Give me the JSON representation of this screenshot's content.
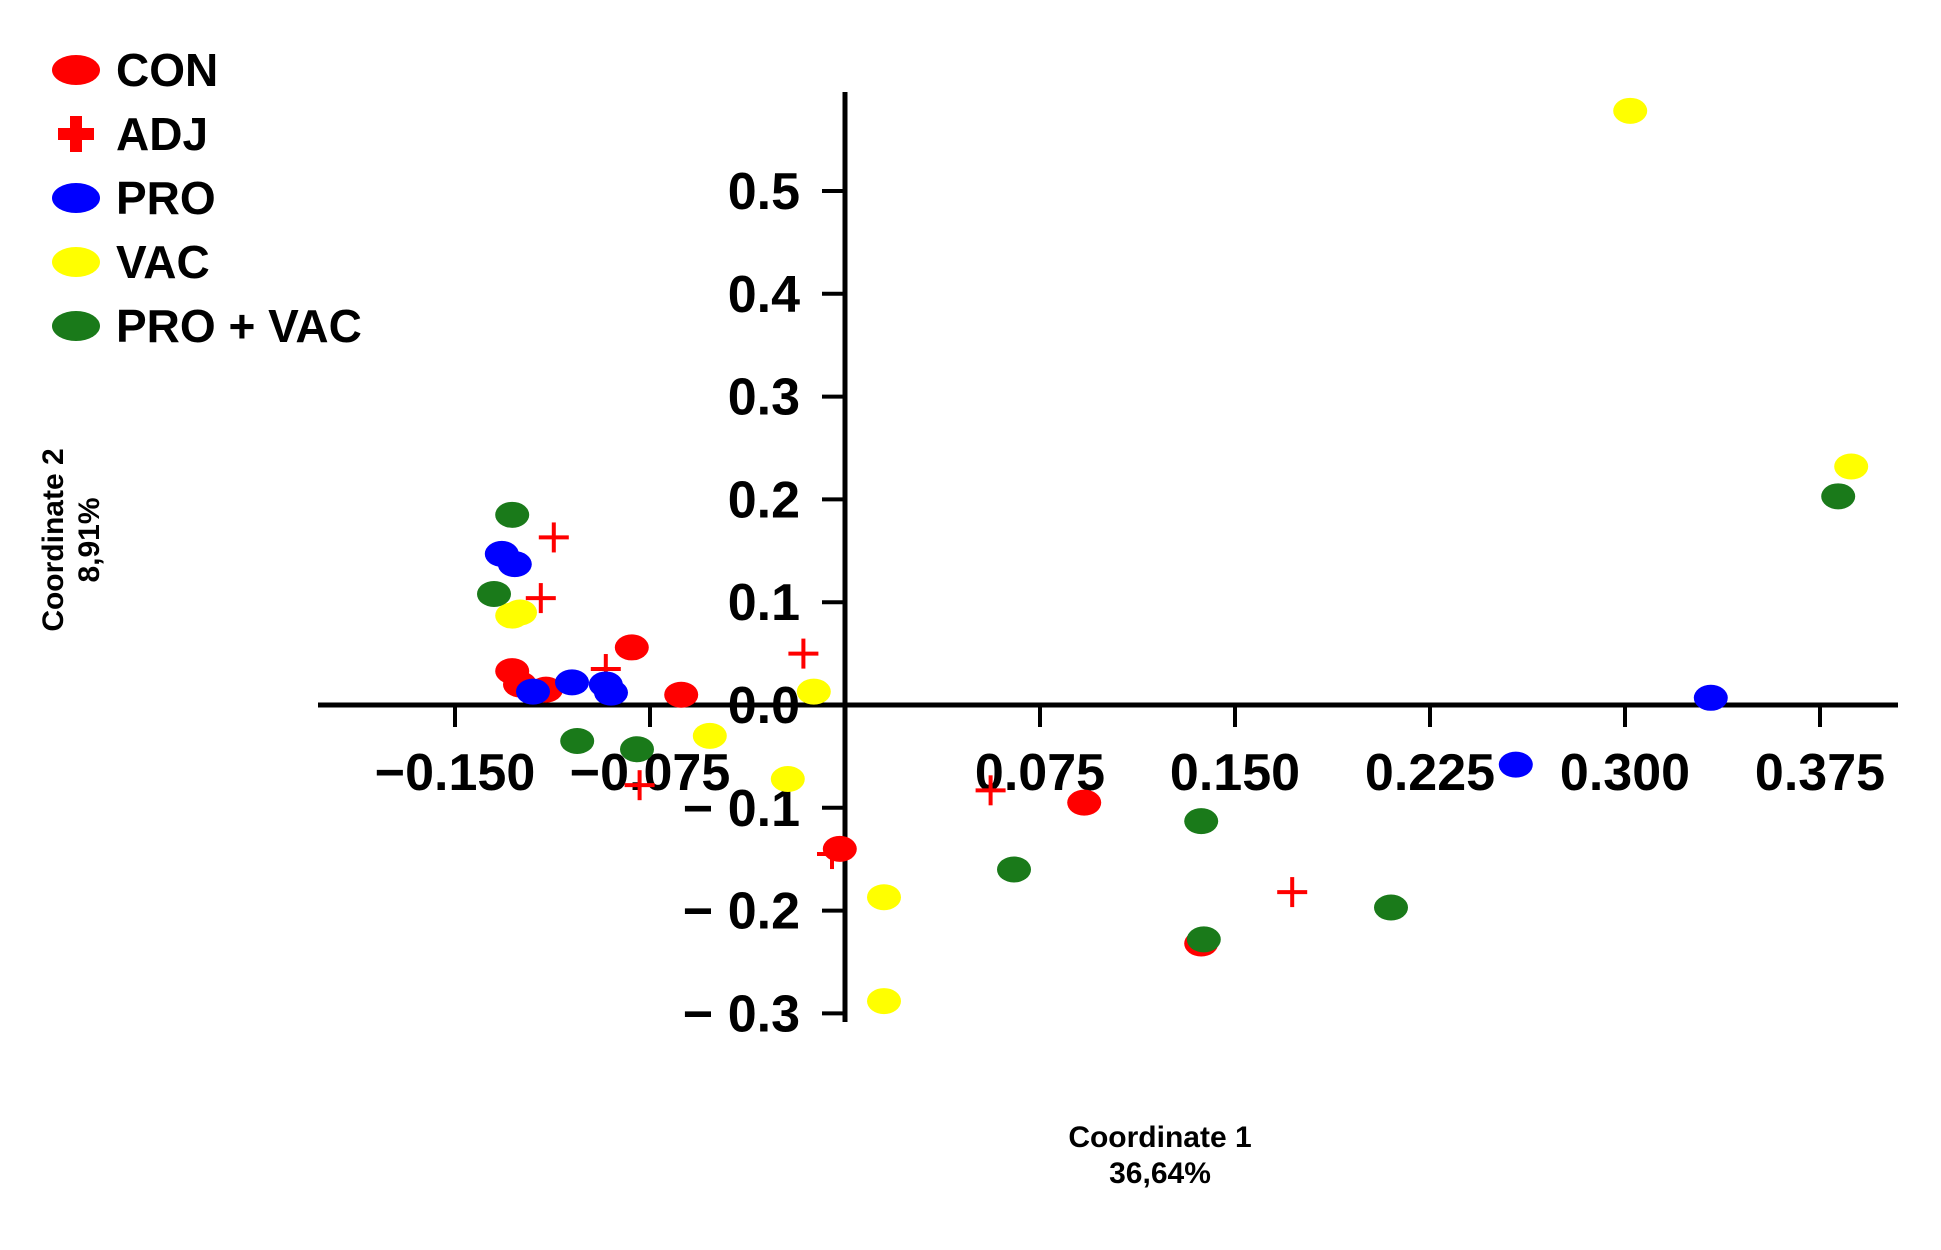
{
  "chart_data": {
    "type": "scatter",
    "xlabel": "Coordinate 1",
    "xlabel_pct": "36,64%",
    "ylabel": "Coordinate 2",
    "ylabel_pct": "8,91%",
    "xticks": [
      "−0.150",
      "−0.075",
      "0.075",
      "0.150",
      "0.225",
      "0.300",
      "0.375"
    ],
    "yticks": [
      "0.5",
      "0.4",
      "0.3",
      "0.2",
      "0.1",
      "0.0",
      "− 0.1",
      "− 0.2",
      "− 0.3"
    ],
    "xlim": [
      -0.2,
      0.4
    ],
    "ylim": [
      -0.3,
      0.58
    ],
    "grid": false,
    "legend_position": "top-left",
    "series": [
      {
        "name": "CON",
        "color": "#ff0000",
        "marker": "ellipse",
        "x": [
          -0.128,
          -0.125,
          -0.115,
          -0.082,
          -0.063,
          -0.002,
          0.092,
          0.137
        ],
        "y": [
          0.033,
          0.02,
          0.015,
          0.056,
          0.01,
          -0.14,
          -0.095,
          -0.232
        ]
      },
      {
        "name": "ADJ",
        "color": "#ff0000",
        "marker": "plus",
        "x": [
          -0.112,
          -0.117,
          -0.092,
          -0.079,
          -0.016,
          -0.005,
          0.056,
          0.172
        ],
        "y": [
          0.163,
          0.104,
          0.035,
          -0.078,
          0.05,
          -0.145,
          -0.083,
          -0.182
        ]
      },
      {
        "name": "PRO",
        "color": "#0000ff",
        "marker": "ellipse",
        "x": [
          -0.132,
          -0.127,
          -0.12,
          -0.105,
          -0.092,
          -0.09,
          0.258,
          0.333
        ],
        "y": [
          0.147,
          0.137,
          0.013,
          0.022,
          0.02,
          0.012,
          -0.058,
          0.007
        ]
      },
      {
        "name": "VAC",
        "color": "#ffff00",
        "marker": "ellipse",
        "x": [
          -0.128,
          -0.125,
          -0.052,
          -0.022,
          -0.012,
          0.015,
          0.015,
          0.302,
          0.387
        ],
        "y": [
          0.087,
          0.09,
          -0.03,
          -0.072,
          0.013,
          -0.187,
          -0.288,
          0.578,
          0.232
        ]
      },
      {
        "name": "PRO + VAC",
        "color": "#1a7a1a",
        "marker": "ellipse",
        "x": [
          -0.128,
          -0.135,
          -0.103,
          -0.08,
          0.065,
          0.137,
          0.138,
          0.21,
          0.382
        ],
        "y": [
          0.185,
          0.108,
          -0.035,
          -0.043,
          -0.16,
          -0.113,
          -0.228,
          -0.197,
          0.203
        ]
      }
    ]
  }
}
